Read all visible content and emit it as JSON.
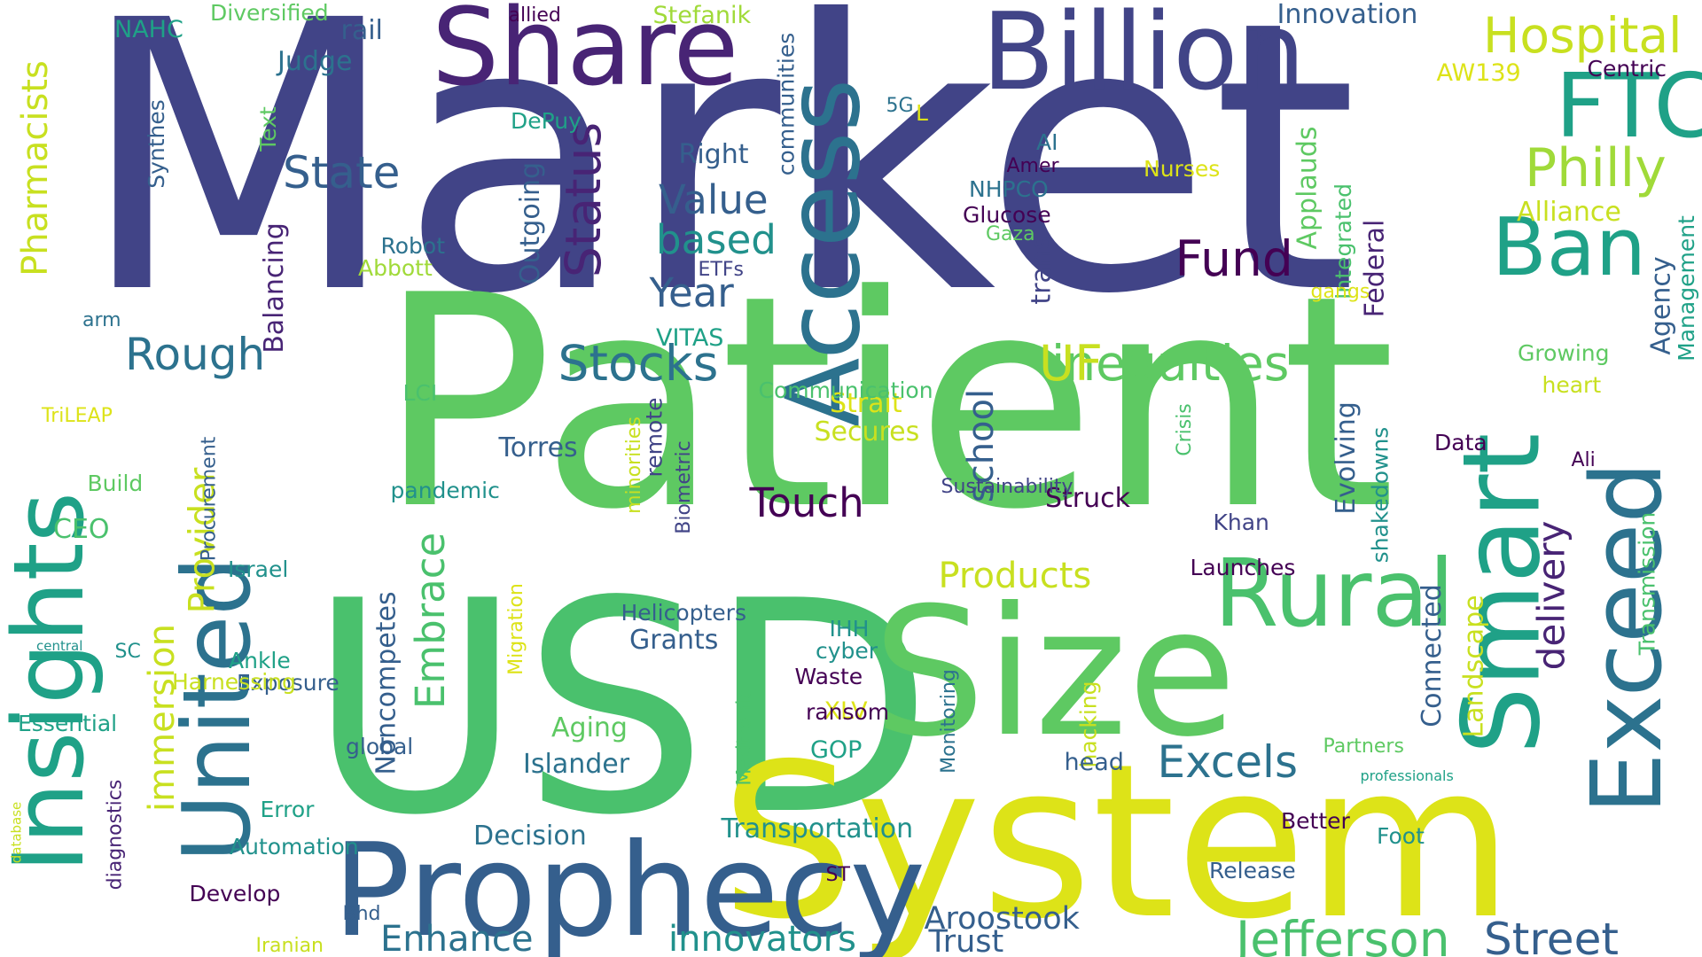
{
  "colors": {
    "background": "#ffffff",
    "indigo": "#414487",
    "purple": "#482475",
    "dark_purple": "#440154",
    "slate_blue": "#355f8d",
    "blue": "#2c728e",
    "teal": "#21918c",
    "teal_green": "#1fa187",
    "green": "#4ac16d",
    "light_green": "#5ec962",
    "lime": "#a0da39",
    "yellow_green": "#c8e020",
    "yellow": "#dde318"
  },
  "words": [
    {
      "text": "Market",
      "color": "#414487"
    },
    {
      "text": "Patient",
      "color": "#5ec962"
    },
    {
      "text": "USD",
      "color": "#4ac16d"
    },
    {
      "text": "System",
      "color": "#dde318"
    },
    {
      "text": "Size",
      "color": "#5ec962"
    },
    {
      "text": "Billion",
      "color": "#414487"
    },
    {
      "text": "Share",
      "color": "#482475"
    },
    {
      "text": "Prophecy",
      "color": "#355f8d"
    },
    {
      "text": "Smart",
      "color": "#1fa187"
    },
    {
      "text": "Insights",
      "color": "#1fa187"
    },
    {
      "text": "United",
      "color": "#2c728e"
    },
    {
      "text": "Access",
      "color": "#2c728e"
    },
    {
      "text": "Rural",
      "color": "#4ac16d"
    },
    {
      "text": "Exceed",
      "color": "#2c728e"
    },
    {
      "text": "FTC",
      "color": "#1fa187"
    },
    {
      "text": "Ban",
      "color": "#1fa187"
    },
    {
      "text": "Philly",
      "color": "#a0da39"
    },
    {
      "text": "Hospital",
      "color": "#c8e020"
    },
    {
      "text": "Jefferson",
      "color": "#4ac16d"
    },
    {
      "text": "Street",
      "color": "#355f8d"
    },
    {
      "text": "inequities",
      "color": "#5ec962"
    },
    {
      "text": "UF",
      "color": "#c8e020"
    },
    {
      "text": "Stocks",
      "color": "#2c728e"
    },
    {
      "text": "Rough",
      "color": "#2c728e"
    },
    {
      "text": "State",
      "color": "#355f8d"
    },
    {
      "text": "Status",
      "color": "#482475"
    },
    {
      "text": "Year",
      "color": "#355f8d"
    },
    {
      "text": "Value",
      "color": "#355f8d"
    },
    {
      "text": "based",
      "color": "#21918c"
    },
    {
      "text": "Fund",
      "color": "#440154"
    },
    {
      "text": "Excels",
      "color": "#2c728e"
    },
    {
      "text": "Enhance",
      "color": "#2c728e"
    },
    {
      "text": "innovators",
      "color": "#21918c"
    },
    {
      "text": "Products",
      "color": "#c8e020"
    },
    {
      "text": "Touch",
      "color": "#440154"
    },
    {
      "text": "Embrace",
      "color": "#4ac16d"
    },
    {
      "text": "Provider",
      "color": "#c8e020"
    },
    {
      "text": "immersion",
      "color": "#c8e020"
    },
    {
      "text": "Pharmacists",
      "color": "#c8e020"
    },
    {
      "text": "delivery",
      "color": "#482475"
    },
    {
      "text": "school",
      "color": "#355f8d"
    },
    {
      "text": "Aroostook",
      "color": "#355f8d"
    },
    {
      "text": "Trust",
      "color": "#355f8d"
    },
    {
      "text": "Right",
      "color": "#355f8d"
    },
    {
      "text": "Outgoing",
      "color": "#355f8d"
    },
    {
      "text": "Applauds",
      "color": "#5ec962"
    },
    {
      "text": "Struck",
      "color": "#440154"
    },
    {
      "text": "Torres",
      "color": "#355f8d"
    },
    {
      "text": "Secures",
      "color": "#c8e020"
    },
    {
      "text": "Strait",
      "color": "#dde318"
    },
    {
      "text": "Grants",
      "color": "#355f8d"
    },
    {
      "text": "Aging",
      "color": "#5ec962"
    },
    {
      "text": "Islander",
      "color": "#2c728e"
    },
    {
      "text": "Decision",
      "color": "#2c728e"
    },
    {
      "text": "Transportation",
      "color": "#21918c"
    },
    {
      "text": "Noncompetes",
      "color": "#355f8d"
    },
    {
      "text": "Balancing",
      "color": "#482475"
    },
    {
      "text": "Evolving",
      "color": "#355f8d"
    },
    {
      "text": "Connected",
      "color": "#355f8d"
    },
    {
      "text": "Landscape",
      "color": "#c8e020"
    },
    {
      "text": "Federal",
      "color": "#482475"
    },
    {
      "text": "Integrated",
      "color": "#4ac16d"
    },
    {
      "text": "Alliance",
      "color": "#c8e020"
    },
    {
      "text": "Agency",
      "color": "#355f8d"
    },
    {
      "text": "Management",
      "color": "#1fa187"
    },
    {
      "text": "Growing",
      "color": "#5ec962"
    },
    {
      "text": "heart",
      "color": "#c8e020"
    },
    {
      "text": "Nurses",
      "color": "#dde318"
    },
    {
      "text": "NHPCO",
      "color": "#2c728e"
    },
    {
      "text": "Glucose",
      "color": "#440154"
    },
    {
      "text": "Gaza",
      "color": "#5ec962"
    },
    {
      "text": "AI",
      "color": "#2c728e"
    },
    {
      "text": "Amer",
      "color": "#440154"
    },
    {
      "text": "trans",
      "color": "#414487"
    },
    {
      "text": "Judge",
      "color": "#2c728e"
    },
    {
      "text": "rail",
      "color": "#355f8d"
    },
    {
      "text": "NAHC",
      "color": "#1fa187"
    },
    {
      "text": "Diversified",
      "color": "#5ec962"
    },
    {
      "text": "allied",
      "color": "#440154"
    },
    {
      "text": "Stefanik",
      "color": "#a0da39"
    },
    {
      "text": "Innovation",
      "color": "#355f8d"
    },
    {
      "text": "AW139",
      "color": "#dde318"
    },
    {
      "text": "Centric",
      "color": "#440154"
    },
    {
      "text": "communities",
      "color": "#355f8d"
    },
    {
      "text": "DePuy",
      "color": "#1fa187"
    },
    {
      "text": "5G",
      "color": "#2c728e"
    },
    {
      "text": "L",
      "color": "#dde318"
    },
    {
      "text": "Synthes",
      "color": "#355f8d"
    },
    {
      "text": "Text",
      "color": "#5ec962"
    },
    {
      "text": "Robot",
      "color": "#2c728e"
    },
    {
      "text": "Abbott",
      "color": "#a0da39"
    },
    {
      "text": "ETFs",
      "color": "#414487"
    },
    {
      "text": "arm",
      "color": "#2c728e"
    },
    {
      "text": "gangs",
      "color": "#dde318"
    },
    {
      "text": "VITAS",
      "color": "#1fa187"
    },
    {
      "text": "LCI",
      "color": "#4ac16d"
    },
    {
      "text": "Communication",
      "color": "#4ac16d"
    },
    {
      "text": "TriLEAP",
      "color": "#dde318"
    },
    {
      "text": "Build",
      "color": "#5ec962"
    },
    {
      "text": "pandemic",
      "color": "#21918c"
    },
    {
      "text": "remote",
      "color": "#414487"
    },
    {
      "text": "minorities",
      "color": "#c8e020"
    },
    {
      "text": "Biometric",
      "color": "#414487"
    },
    {
      "text": "Sustainability",
      "color": "#414487"
    },
    {
      "text": "Crisis",
      "color": "#4ac16d"
    },
    {
      "text": "Data",
      "color": "#440154"
    },
    {
      "text": "Ali",
      "color": "#440154"
    },
    {
      "text": "Khan",
      "color": "#414487"
    },
    {
      "text": "shakedowns",
      "color": "#21918c"
    },
    {
      "text": "Transmission",
      "color": "#4ac16d"
    },
    {
      "text": "Launches",
      "color": "#440154"
    },
    {
      "text": "Procurement",
      "color": "#355f8d"
    },
    {
      "text": "CEO",
      "color": "#4ac16d"
    },
    {
      "text": "Israel",
      "color": "#21918c"
    },
    {
      "text": "Helicopters",
      "color": "#355f8d"
    },
    {
      "text": "Migration",
      "color": "#dde318"
    },
    {
      "text": "IHH",
      "color": "#21918c"
    },
    {
      "text": "cyber",
      "color": "#21918c"
    },
    {
      "text": "Waste",
      "color": "#440154"
    },
    {
      "text": "XLV",
      "color": "#dde318"
    },
    {
      "text": "ransom",
      "color": "#440154"
    },
    {
      "text": "Medtronic",
      "color": "#4ac16d"
    },
    {
      "text": "Monitoring",
      "color": "#2c728e"
    },
    {
      "text": "hacking",
      "color": "#c8e020"
    },
    {
      "text": "central",
      "color": "#21918c"
    },
    {
      "text": "SC",
      "color": "#21918c"
    },
    {
      "text": "Ankle",
      "color": "#1fa187"
    },
    {
      "text": "Exposure",
      "color": "#355f8d"
    },
    {
      "text": "Essential",
      "color": "#1fa187"
    },
    {
      "text": "Harnessing",
      "color": "#c8e020"
    },
    {
      "text": "global",
      "color": "#355f8d"
    },
    {
      "text": "diagnostics",
      "color": "#482475"
    },
    {
      "text": "database",
      "color": "#c8e020"
    },
    {
      "text": "Error",
      "color": "#1fa187"
    },
    {
      "text": "Automation",
      "color": "#21918c"
    },
    {
      "text": "Develop",
      "color": "#440154"
    },
    {
      "text": "GOP",
      "color": "#1fa187"
    },
    {
      "text": "head",
      "color": "#355f8d"
    },
    {
      "text": "Partners",
      "color": "#5ec962"
    },
    {
      "text": "professionals",
      "color": "#1fa187"
    },
    {
      "text": "Better",
      "color": "#440154"
    },
    {
      "text": "Foot",
      "color": "#21918c"
    },
    {
      "text": "Release",
      "color": "#355f8d"
    },
    {
      "text": "ST",
      "color": "#440154"
    },
    {
      "text": "Bhd",
      "color": "#355f8d"
    },
    {
      "text": "Iranian",
      "color": "#c8e020"
    }
  ]
}
